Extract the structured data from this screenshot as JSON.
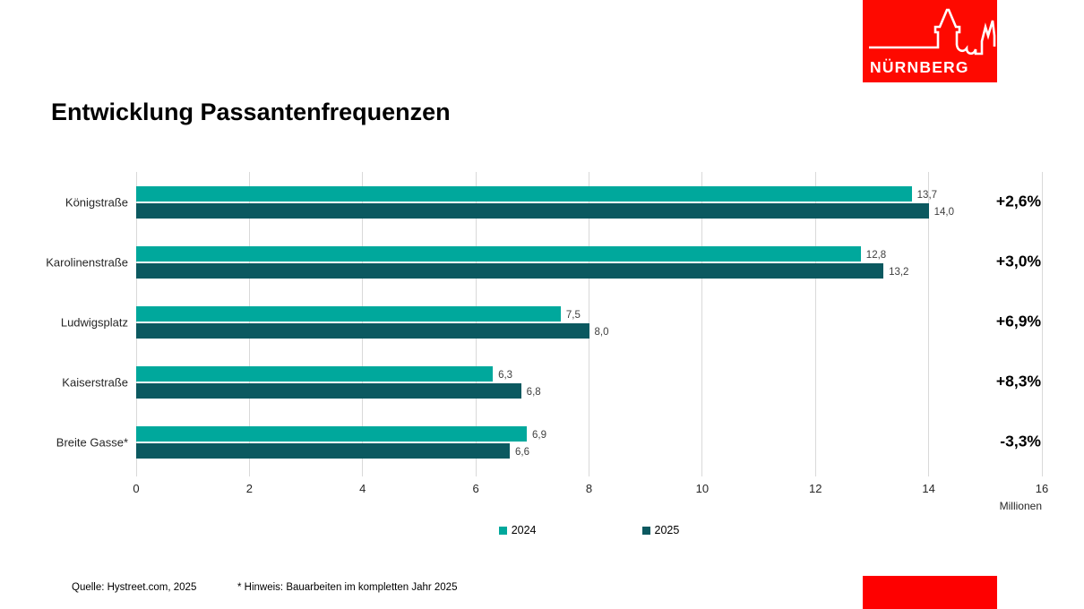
{
  "page": {
    "title": "Entwicklung Passantenfrequenzen"
  },
  "logo": {
    "text": "NÜRNBERG",
    "color": "#FE0900"
  },
  "chart_data": {
    "type": "bar",
    "orientation": "horizontal",
    "title": "Entwicklung Passantenfrequenzen",
    "xlabel": "Millionen",
    "ylabel": "",
    "x_min": 0,
    "x_max": 16,
    "x_ticks": [
      0,
      2,
      4,
      6,
      8,
      10,
      12,
      14,
      16
    ],
    "grid": true,
    "unit": "Millionen",
    "categories": [
      "Königstraße",
      "Karolinenstraße",
      "Ludwigsplatz",
      "Kaiserstraße",
      "Breite Gasse*"
    ],
    "series": [
      {
        "name": "2024",
        "color": "#00A89C",
        "values": [
          13.7,
          12.8,
          7.5,
          6.3,
          6.9
        ],
        "value_labels": [
          "13,7",
          "12,8",
          "7,5",
          "6,3",
          "6,9"
        ]
      },
      {
        "name": "2025",
        "color": "#0B5960",
        "values": [
          14.0,
          13.2,
          8.0,
          6.8,
          6.6
        ],
        "value_labels": [
          "14,0",
          "13,2",
          "8,0",
          "6,8",
          "6,6"
        ]
      }
    ],
    "change_labels": [
      "+2,6%",
      "+3,0%",
      "+6,9%",
      "+8,3%",
      "-3,3%"
    ],
    "legend_position": "bottom"
  },
  "legend": {
    "items": [
      {
        "label": "2024",
        "color": "#00A89C"
      },
      {
        "label": "2025",
        "color": "#0B5960"
      }
    ]
  },
  "footer": {
    "source": "Quelle: Hystreet.com, 2025",
    "note": "* Hinweis: Bauarbeiten im kompletten Jahr 2025"
  },
  "accent": {
    "color": "#FE0000"
  }
}
